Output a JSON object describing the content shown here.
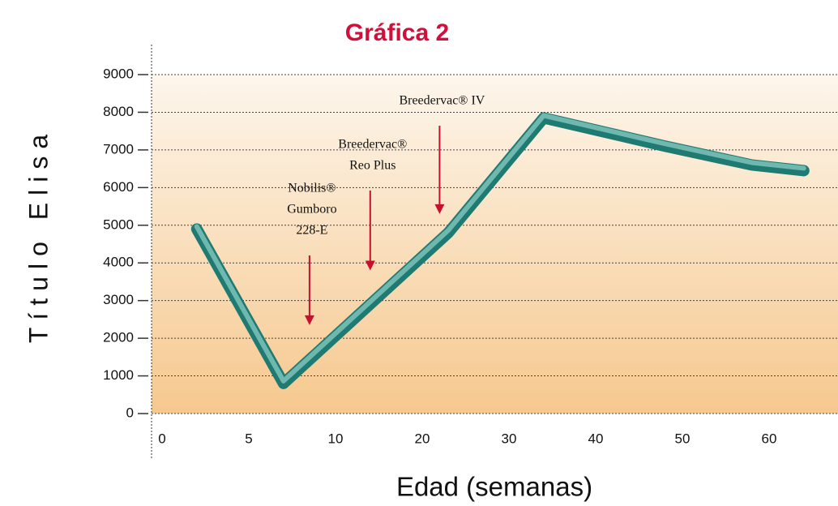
{
  "chart_data": {
    "type": "line",
    "title": "Gráfica 2",
    "x_label": "Edad (semanas)",
    "y_label": "Título Elisa",
    "x": [
      2,
      7,
      23,
      34,
      48,
      58,
      64
    ],
    "series": [
      {
        "name": "Título Elisa",
        "color": "#1f7a72",
        "values": [
          4900,
          800,
          4800,
          7850,
          7100,
          6600,
          6450
        ]
      }
    ],
    "ylim": [
      0,
      9000
    ],
    "yticks": [
      0,
      1000,
      2000,
      3000,
      4000,
      5000,
      6000,
      7000,
      8000,
      9000
    ],
    "xticks": [
      0,
      5,
      10,
      20,
      30,
      40,
      50,
      60
    ],
    "grid": true,
    "annotations": [
      {
        "lines": [
          "Breedervac® IV"
        ],
        "x": 22,
        "y": 5300
      },
      {
        "lines": [
          "Breedervac®",
          "Reo Plus"
        ],
        "x": 14,
        "y": 3800
      },
      {
        "lines": [
          "Nobilis®",
          "Gumboro",
          "228-E"
        ],
        "x": 8.5,
        "y": 2350
      }
    ]
  }
}
